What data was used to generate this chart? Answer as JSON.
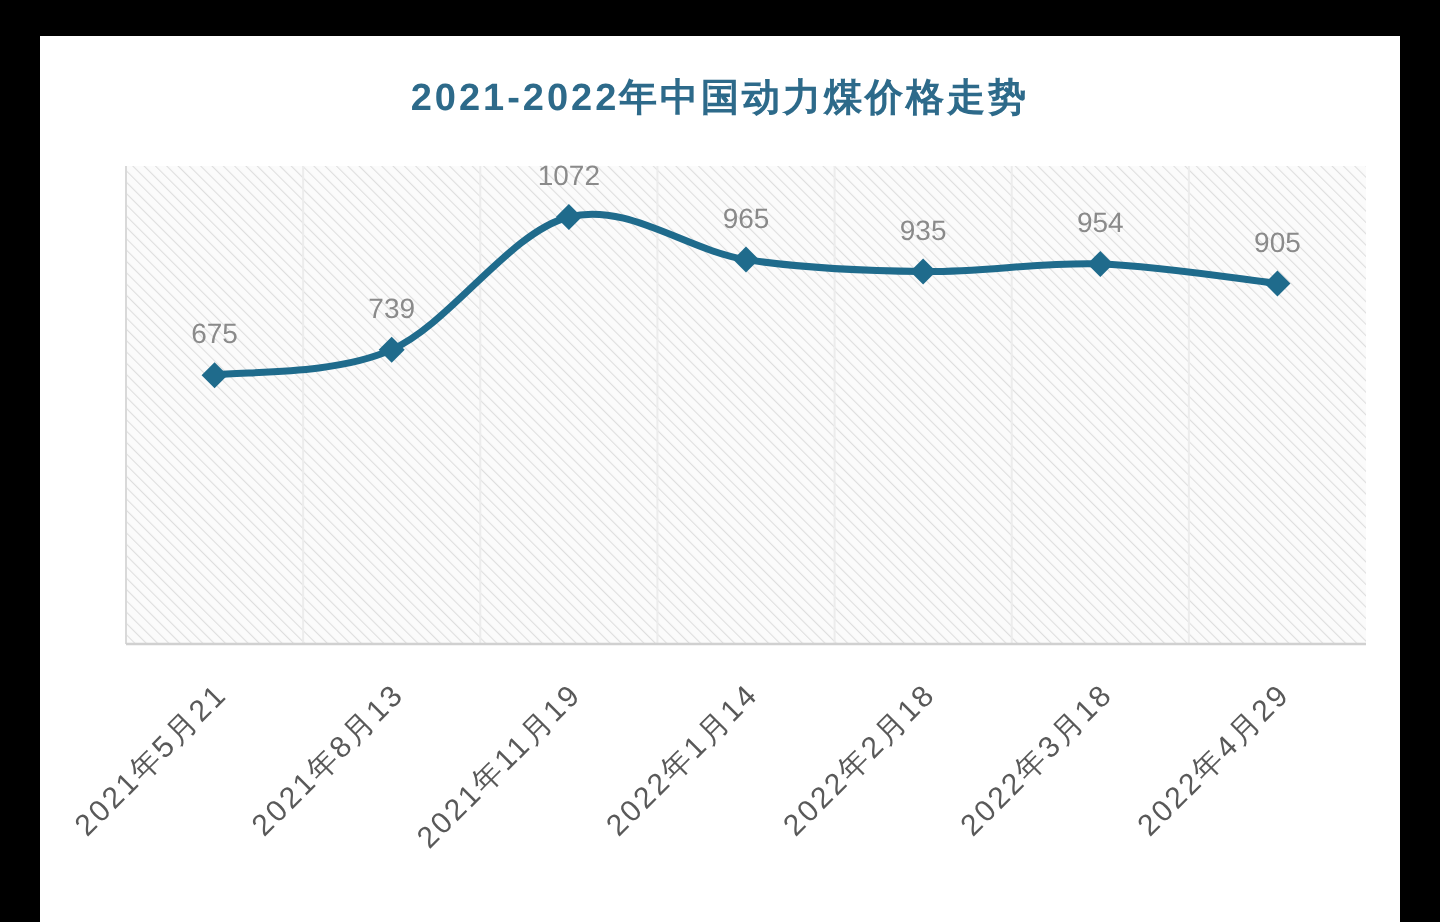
{
  "chart_data": {
    "type": "line",
    "title": "2021-2022年中国动力煤价格走势",
    "categories": [
      "2021年5月21",
      "2021年8月13",
      "2021年11月19",
      "2022年1月14",
      "2022年2月18",
      "2022年3月18",
      "2022年4月29"
    ],
    "series": [
      {
        "color": "#1f6b8c",
        "values": [
          675,
          739,
          1072,
          965,
          935,
          954,
          905
        ]
      }
    ],
    "ylim": [
      0,
      1200
    ],
    "data_labels": true,
    "marker": "diamond",
    "line_style": "solid",
    "grid": "x",
    "tick_labels": "x"
  }
}
